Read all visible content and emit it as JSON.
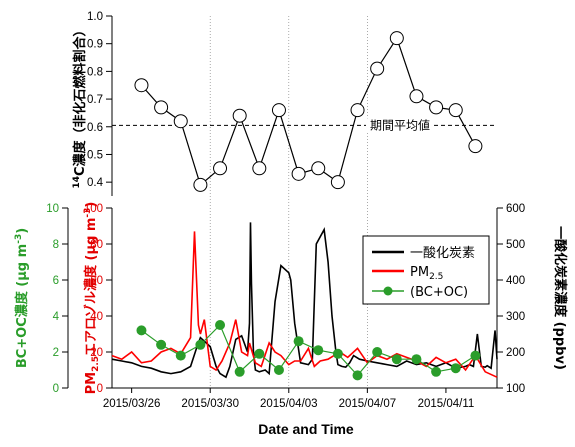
{
  "xaxis": {
    "title": "Date and Time",
    "tick_labels": [
      "2015/03/26",
      "2015/03/30",
      "2015/04/03",
      "2015/04/07",
      "2015/04/11"
    ]
  },
  "chart_data": [
    {
      "type": "line",
      "panel": "top",
      "ylabel_superscript": "14",
      "ylabel": "C濃度（非化石燃料割合）",
      "ylim": [
        0.35,
        1.0
      ],
      "yticks": [
        "0.4",
        "0.5",
        "0.6",
        "0.7",
        "0.8",
        "0.9",
        "1.0"
      ],
      "grid_x": "dotted vertical lines at 2015/03/30, 2015/04/03, 2015/04/07",
      "series": [
        {
          "marker": "open-circle",
          "x": [
            "2015/03/26 12:00",
            "2015/03/27 12:00",
            "2015/03/28 12:00",
            "2015/03/29 12:00",
            "2015/03/30 12:00",
            "2015/03/31 12:00",
            "2015/04/01 12:00",
            "2015/04/02 12:00",
            "2015/04/03 12:00",
            "2015/04/04 12:00",
            "2015/04/05 12:00",
            "2015/04/06 12:00",
            "2015/04/07 12:00",
            "2015/04/08 12:00",
            "2015/04/09 12:00",
            "2015/04/10 12:00",
            "2015/04/11 12:00",
            "2015/04/12 12:00",
            "2015/04/13 12:00"
          ],
          "values": [
            0.75,
            0.67,
            0.62,
            0.39,
            0.45,
            0.64,
            0.45,
            0.66,
            0.43,
            0.45,
            0.4,
            0.66,
            0.81,
            0.92,
            0.71,
            0.67,
            0.66,
            0.53,
            null
          ]
        }
      ],
      "reference_line": {
        "value": 0.605,
        "label": "期間平均値",
        "style": "dashed"
      }
    },
    {
      "type": "line",
      "panel": "bottom",
      "left_axis_outer": {
        "label": "BC+OC濃度 (μg m⁻³)",
        "label_main": "BC+OC濃度 (μg m",
        "label_sup": "-3",
        "label_end": ")",
        "ylim": [
          0,
          10
        ],
        "ticks": [
          "0",
          "2",
          "4",
          "6",
          "8",
          "10"
        ],
        "color": "#2a9d2a"
      },
      "left_axis_inner": {
        "label_pre": "PM",
        "label_sub": "2.5",
        "label_main": "エアロゾル濃度 (μg m",
        "label_sup": "-3",
        "label_end": ")",
        "ylim": [
          0,
          100
        ],
        "ticks": [
          "0",
          "20",
          "40",
          "60",
          "80",
          "100"
        ],
        "color": "#e30000"
      },
      "right_axis": {
        "label": "一酸化炭素濃度 (ppbv)",
        "ylim": [
          100,
          600
        ],
        "ticks": [
          "100",
          "200",
          "300",
          "400",
          "500",
          "600"
        ],
        "color": "#000000"
      },
      "legend": {
        "placement": "top-right",
        "entries": [
          {
            "label": "一酸化炭素",
            "color": "#000000"
          },
          {
            "label_main": "PM",
            "label_sub": "2.5",
            "color": "#ff0000"
          },
          {
            "label": "(BC+OC)",
            "color": "#2a9d2a",
            "marker": "filled-circle"
          }
        ]
      },
      "series": [
        {
          "name": "一酸化炭素",
          "axis": "right",
          "color": "#000000",
          "x_days_from_0325": [
            0.0,
            0.5,
            1.0,
            1.5,
            2.0,
            2.5,
            3.0,
            3.5,
            4.0,
            4.3,
            4.5,
            4.8,
            5.0,
            5.3,
            5.5,
            5.8,
            6.0,
            6.3,
            6.6,
            6.9,
            7.0,
            7.05,
            7.1,
            7.2,
            7.3,
            7.5,
            7.8,
            8.0,
            8.3,
            8.6,
            9.0,
            9.1,
            9.3,
            9.6,
            10.0,
            10.2,
            10.4,
            10.8,
            11.0,
            11.2,
            11.4,
            11.5,
            11.7,
            11.9,
            12.1,
            12.3,
            12.6,
            13.0,
            13.5,
            14.0,
            14.5,
            15.0,
            15.5,
            16.0,
            16.5,
            17.0,
            17.5,
            18.0,
            18.2,
            18.4,
            18.6,
            18.8,
            19.0,
            19.1,
            19.3,
            19.5,
            19.6
          ],
          "values": [
            180,
            175,
            170,
            160,
            155,
            145,
            140,
            145,
            160,
            210,
            240,
            225,
            215,
            160,
            140,
            130,
            160,
            235,
            245,
            200,
            280,
            560,
            390,
            200,
            150,
            145,
            150,
            140,
            340,
            440,
            420,
            400,
            280,
            170,
            165,
            180,
            500,
            540,
            450,
            300,
            200,
            165,
            160,
            158,
            170,
            190,
            180,
            175,
            170,
            165,
            160,
            175,
            165,
            170,
            160,
            170,
            155,
            160,
            165,
            160,
            250,
            160,
            158,
            162,
            155,
            260,
            180
          ]
        },
        {
          "name": "PM2.5",
          "axis": "inner-left",
          "color": "#ff0000",
          "x_days_from_0325": [
            0.0,
            0.5,
            1.0,
            1.5,
            2.0,
            2.5,
            3.0,
            3.5,
            4.0,
            4.2,
            4.4,
            4.5,
            4.7,
            5.0,
            5.3,
            5.6,
            6.0,
            6.3,
            6.6,
            6.9,
            7.0,
            7.3,
            7.6,
            8.0,
            8.3,
            8.6,
            9.0,
            9.3,
            9.6,
            10.0,
            10.3,
            10.6,
            11.0,
            11.3,
            11.6,
            12.0,
            12.5,
            13.0,
            13.5,
            14.0,
            14.5,
            15.0,
            15.5,
            16.0,
            16.5,
            17.0,
            17.5,
            18.0,
            18.5,
            19.0,
            19.6
          ],
          "values": [
            18,
            16,
            20,
            14,
            15,
            20,
            22,
            19,
            28,
            87,
            35,
            30,
            38,
            12,
            10,
            15,
            25,
            38,
            20,
            18,
            25,
            14,
            12,
            25,
            20,
            18,
            13,
            15,
            15,
            22,
            12,
            15,
            16,
            18,
            20,
            17,
            22,
            14,
            18,
            16,
            19,
            17,
            15,
            12,
            17,
            14,
            16,
            10,
            18,
            9,
            6
          ]
        },
        {
          "name": "(BC+OC)",
          "axis": "outer-left",
          "color": "#2a9d2a",
          "marker": "filled-circle",
          "x": [
            "2015/03/26 12:00",
            "2015/03/27 12:00",
            "2015/03/28 12:00",
            "2015/03/29 12:00",
            "2015/03/30 12:00",
            "2015/03/31 12:00",
            "2015/04/01 12:00",
            "2015/04/02 12:00",
            "2015/04/03 12:00",
            "2015/04/04 12:00",
            "2015/04/05 12:00",
            "2015/04/06 12:00",
            "2015/04/07 12:00",
            "2015/04/08 12:00",
            "2015/04/09 12:00",
            "2015/04/10 12:00",
            "2015/04/11 12:00",
            "2015/04/12 12:00"
          ],
          "values": [
            3.2,
            2.4,
            1.8,
            2.4,
            3.5,
            0.9,
            1.9,
            1.0,
            2.6,
            2.1,
            1.9,
            0.7,
            2.0,
            1.6,
            1.6,
            0.9,
            1.1,
            1.8
          ]
        }
      ]
    }
  ]
}
